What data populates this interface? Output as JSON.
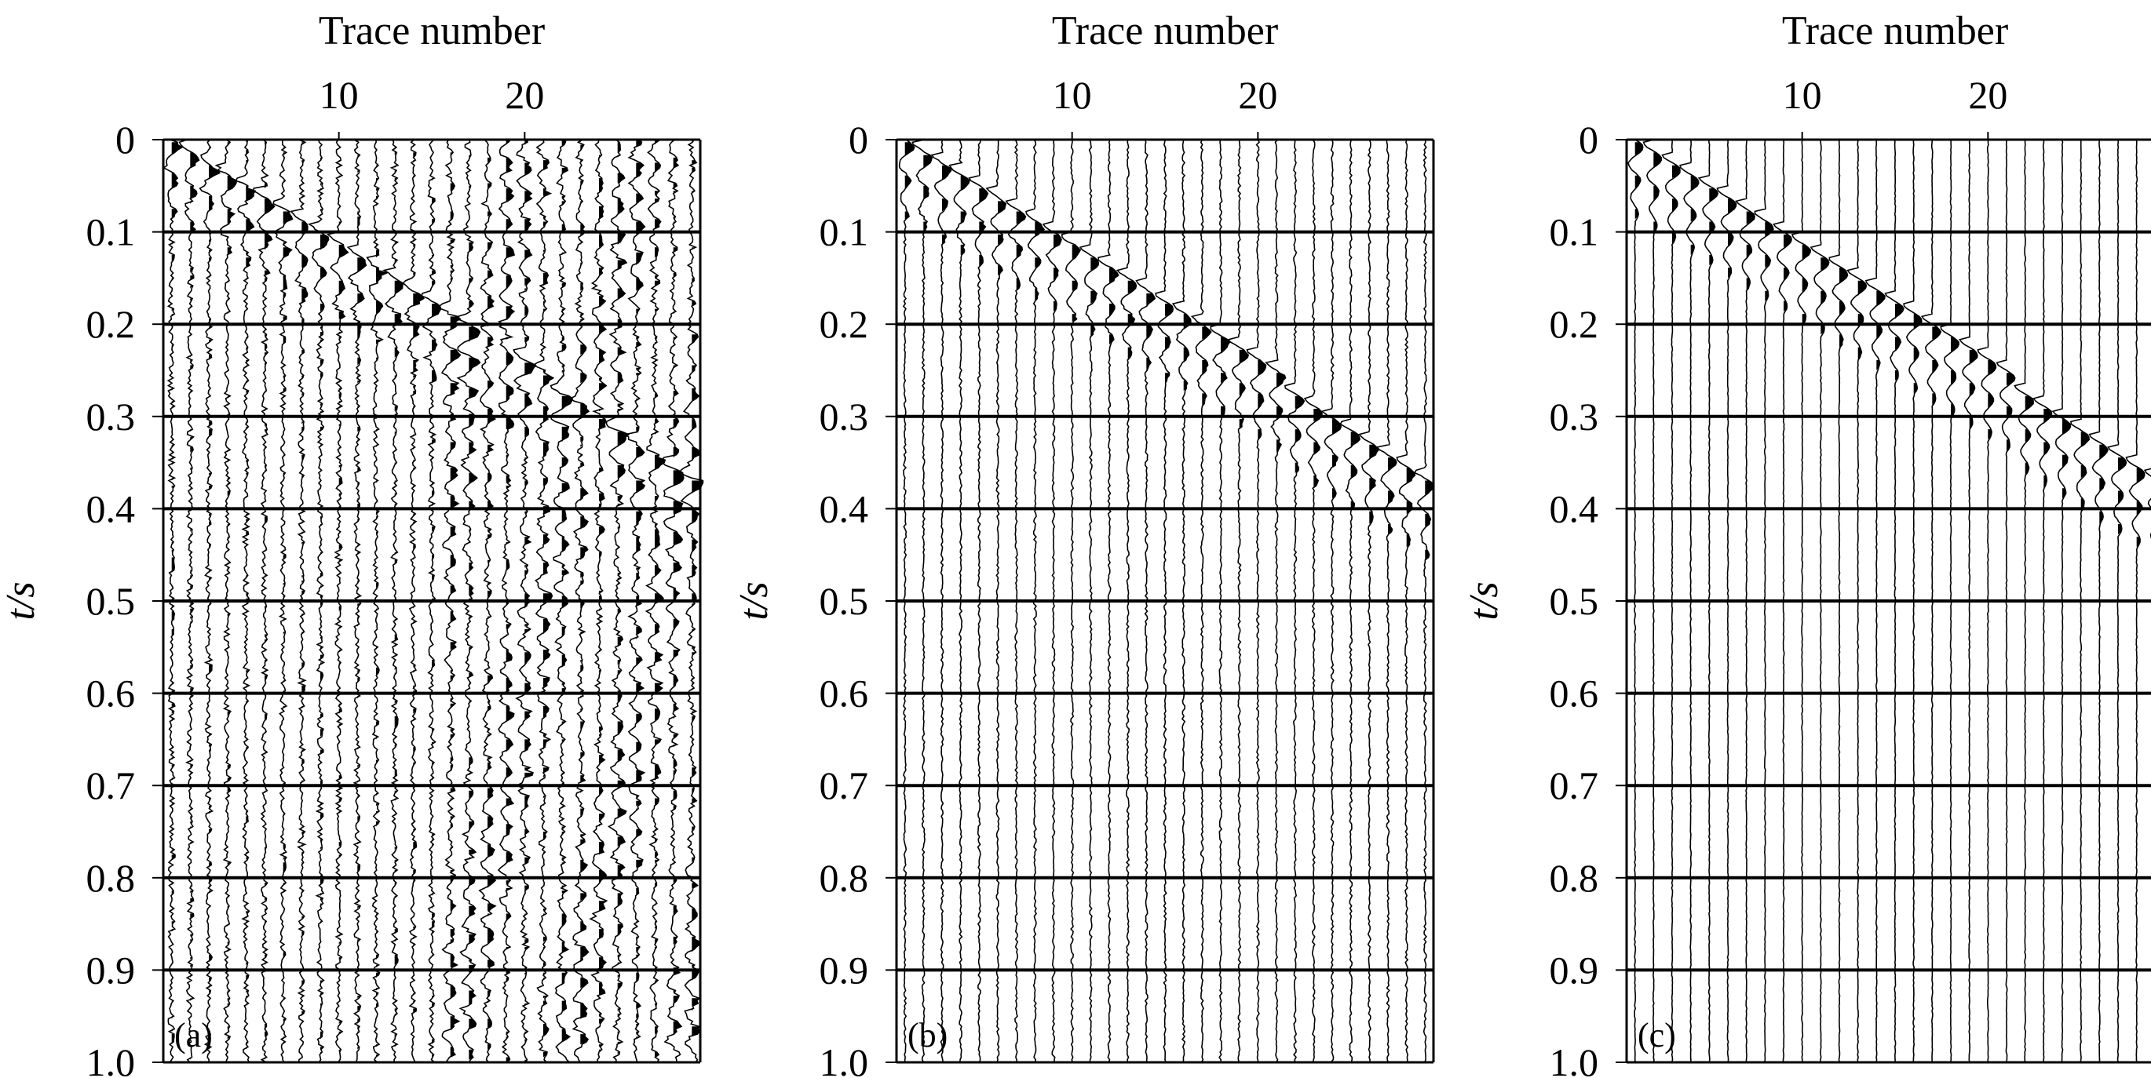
{
  "figure": {
    "trace_color": "#000000",
    "background": "#ffffff"
  },
  "chart_data": [
    {
      "type": "seismic-wiggle",
      "panel_label": "(a)",
      "xlabel": "Trace number",
      "ylabel": "t/s",
      "xticks": [
        10,
        20
      ],
      "x_range": [
        1,
        29
      ],
      "ylim": [
        0,
        1.0
      ],
      "yticks": [
        "0",
        "0.1",
        "0.2",
        "0.3",
        "0.4",
        "0.5",
        "0.6",
        "0.7",
        "0.8",
        "0.9",
        "1.0"
      ],
      "y_inverted": true,
      "timing_lines": [
        0.1,
        0.2,
        0.3,
        0.4,
        0.5,
        0.6,
        0.7,
        0.8,
        0.9
      ],
      "n_traces": 29,
      "events": [
        {
          "kind": "first-break",
          "t0": 0.0,
          "slope_per_trace": 0.0125,
          "amplitude": 1.0
        },
        {
          "kind": "surface-wave",
          "traces_from": 16,
          "traces_to": 29,
          "t_from": 0.0,
          "t_to": 1.0,
          "amplitude": 0.8
        }
      ],
      "noise": "strong"
    },
    {
      "type": "seismic-wiggle",
      "panel_label": "(b)",
      "xlabel": "Trace number",
      "ylabel": "t/s",
      "xticks": [
        10,
        20
      ],
      "x_range": [
        1,
        29
      ],
      "ylim": [
        0,
        1.0
      ],
      "yticks": [
        "0",
        "0.1",
        "0.2",
        "0.3",
        "0.4",
        "0.5",
        "0.6",
        "0.7",
        "0.8",
        "0.9",
        "1.0"
      ],
      "y_inverted": true,
      "timing_lines": [
        0.1,
        0.2,
        0.3,
        0.4,
        0.5,
        0.6,
        0.7,
        0.8,
        0.9
      ],
      "n_traces": 29,
      "events": [
        {
          "kind": "first-break",
          "t0": 0.0,
          "slope_per_trace": 0.0125,
          "amplitude": 1.0
        }
      ],
      "noise": "moderate"
    },
    {
      "type": "seismic-wiggle",
      "panel_label": "(c)",
      "xlabel": "Trace number",
      "ylabel": "t/s",
      "xticks": [
        10,
        20
      ],
      "x_range": [
        1,
        29
      ],
      "ylim": [
        0,
        1.0
      ],
      "yticks": [
        "0",
        "0.1",
        "0.2",
        "0.3",
        "0.4",
        "0.5",
        "0.6",
        "0.7",
        "0.8",
        "0.9",
        "1.0"
      ],
      "y_inverted": true,
      "timing_lines": [
        0.1,
        0.2,
        0.3,
        0.4,
        0.5,
        0.6,
        0.7,
        0.8,
        0.9
      ],
      "n_traces": 29,
      "events": [
        {
          "kind": "first-break",
          "t0": 0.0,
          "slope_per_trace": 0.0125,
          "amplitude": 1.0
        }
      ],
      "noise": "weak"
    }
  ]
}
